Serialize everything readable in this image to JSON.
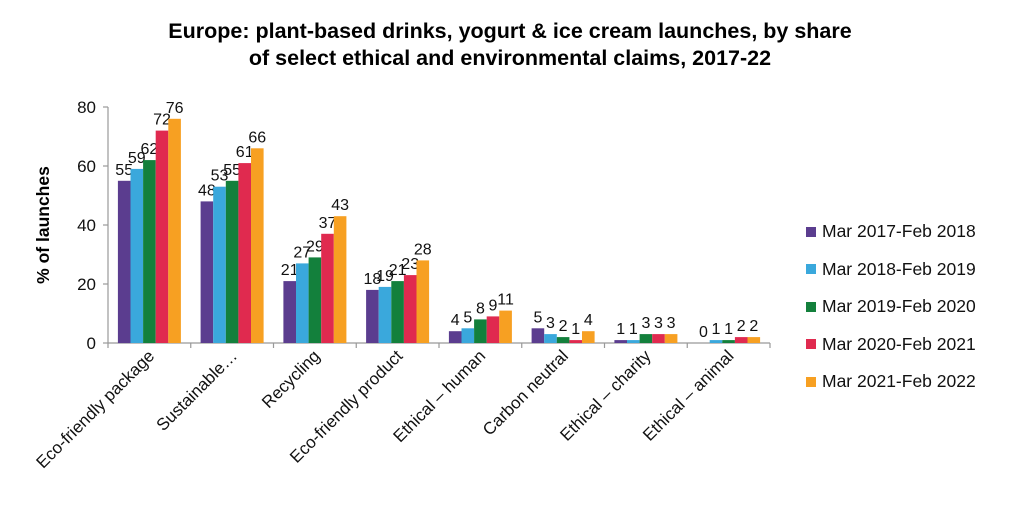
{
  "chart_data": {
    "type": "bar",
    "title": "Europe: plant-based drinks, yogurt & ice cream launches, by share of select ethical and environmental claims, 2017-22",
    "title_lines": [
      "Europe: plant-based drinks, yogurt & ice cream launches, by share",
      "of select ethical and environmental claims, 2017-22"
    ],
    "xlabel": "",
    "ylabel": "% of launches",
    "ylim": [
      0,
      80
    ],
    "yticks": [
      0,
      20,
      40,
      60,
      80
    ],
    "grid": false,
    "legend_position": "right",
    "categories": [
      "Eco-friendly package",
      "Sustainable…",
      "Recycling",
      "Eco-friendly product",
      "Ethical – human",
      "Carbon neutral",
      "Ethical – charity",
      "Ethical – animal"
    ],
    "series": [
      {
        "name": "Mar 2017-Feb 2018",
        "color": "#5b3d8f",
        "values": [
          55,
          48,
          21,
          18,
          4,
          5,
          1,
          0
        ]
      },
      {
        "name": "Mar 2018-Feb 2019",
        "color": "#3aa8dc",
        "values": [
          59,
          53,
          27,
          19,
          5,
          3,
          1,
          1
        ]
      },
      {
        "name": "Mar 2019-Feb 2020",
        "color": "#13803c",
        "values": [
          62,
          55,
          29,
          21,
          8,
          2,
          3,
          1
        ]
      },
      {
        "name": "Mar 2020-Feb 2021",
        "color": "#e02a4f",
        "values": [
          72,
          61,
          37,
          23,
          9,
          1,
          3,
          2
        ]
      },
      {
        "name": "Mar 2021-Feb 2022",
        "color": "#f7a022",
        "values": [
          76,
          66,
          43,
          28,
          11,
          4,
          3,
          2
        ]
      }
    ]
  }
}
